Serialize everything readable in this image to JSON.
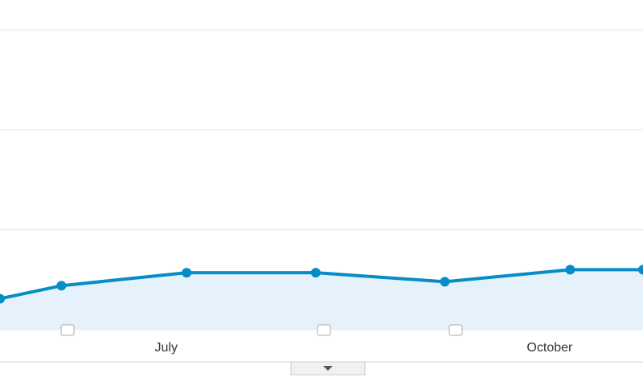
{
  "chart_data": {
    "type": "line",
    "x": [
      5.7,
      6.18,
      7.16,
      8.17,
      9.18,
      10.16,
      10.73
    ],
    "series": [
      {
        "color": "#058dc7",
        "values": [
          0.31,
          0.44,
          0.57,
          0.57,
          0.48,
          0.6,
          0.6
        ]
      }
    ],
    "xlim": [
      5.7,
      10.73
    ],
    "xticks": [
      {
        "value": 7,
        "label": "July"
      },
      {
        "value": 10,
        "label": "October"
      }
    ],
    "ylim": [
      0,
      3
    ],
    "yticks": [
      0,
      1,
      2,
      3
    ],
    "grid": true,
    "area_color": "#e6f2fb"
  }
}
